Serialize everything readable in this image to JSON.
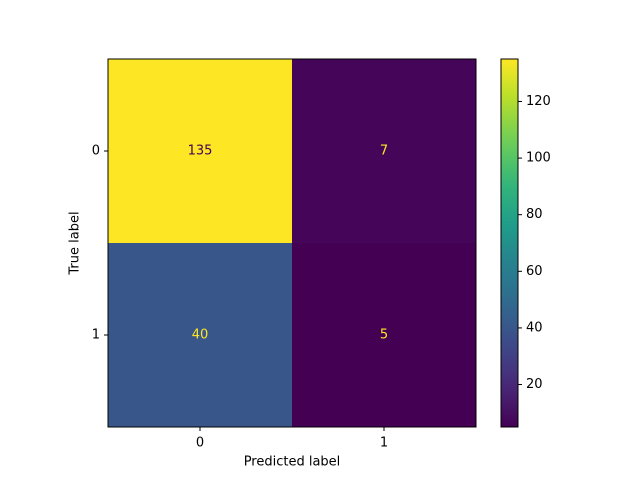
{
  "chart_data": {
    "type": "heatmap",
    "colormap": "viridis",
    "x_categories": [
      "0",
      "1"
    ],
    "y_categories": [
      "0",
      "1"
    ],
    "values": [
      [
        135,
        7
      ],
      [
        40,
        5
      ]
    ],
    "xlabel": "Predicted label",
    "ylabel": "True label",
    "clim": [
      5,
      135
    ],
    "cticks": [
      20,
      40,
      60,
      80,
      100,
      120
    ]
  }
}
